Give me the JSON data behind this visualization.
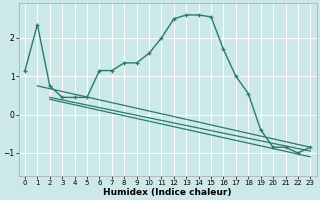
{
  "xlabel": "Humidex (Indice chaleur)",
  "background_color": "#cce8e8",
  "grid_color": "#ffffff",
  "line_color": "#2a7a6a",
  "xlim": [
    -0.5,
    23.5
  ],
  "ylim": [
    -1.6,
    2.9
  ],
  "yticks": [
    -1,
    0,
    1,
    2
  ],
  "xticks": [
    0,
    1,
    2,
    3,
    4,
    5,
    6,
    7,
    8,
    9,
    10,
    11,
    12,
    13,
    14,
    15,
    16,
    17,
    18,
    19,
    20,
    21,
    22,
    23
  ],
  "series1_x": [
    0,
    1,
    2,
    3,
    4,
    5,
    6,
    7,
    8,
    9,
    10,
    11,
    12,
    13,
    14,
    15,
    16,
    17,
    18,
    19,
    20,
    21,
    22,
    23
  ],
  "series1_y": [
    1.15,
    2.35,
    0.75,
    0.45,
    0.45,
    0.45,
    1.15,
    1.15,
    1.35,
    1.35,
    1.6,
    2.0,
    2.5,
    2.6,
    2.6,
    2.55,
    1.7,
    1.0,
    0.55,
    -0.4,
    -0.85,
    -0.85,
    -1.0,
    -0.85
  ],
  "line1_x": [
    1,
    23
  ],
  "line1_y": [
    0.75,
    -0.85
  ],
  "line2_x": [
    2,
    23
  ],
  "line2_y": [
    0.45,
    -0.95
  ],
  "line3_x": [
    2,
    23
  ],
  "line3_y": [
    0.4,
    -1.1
  ]
}
